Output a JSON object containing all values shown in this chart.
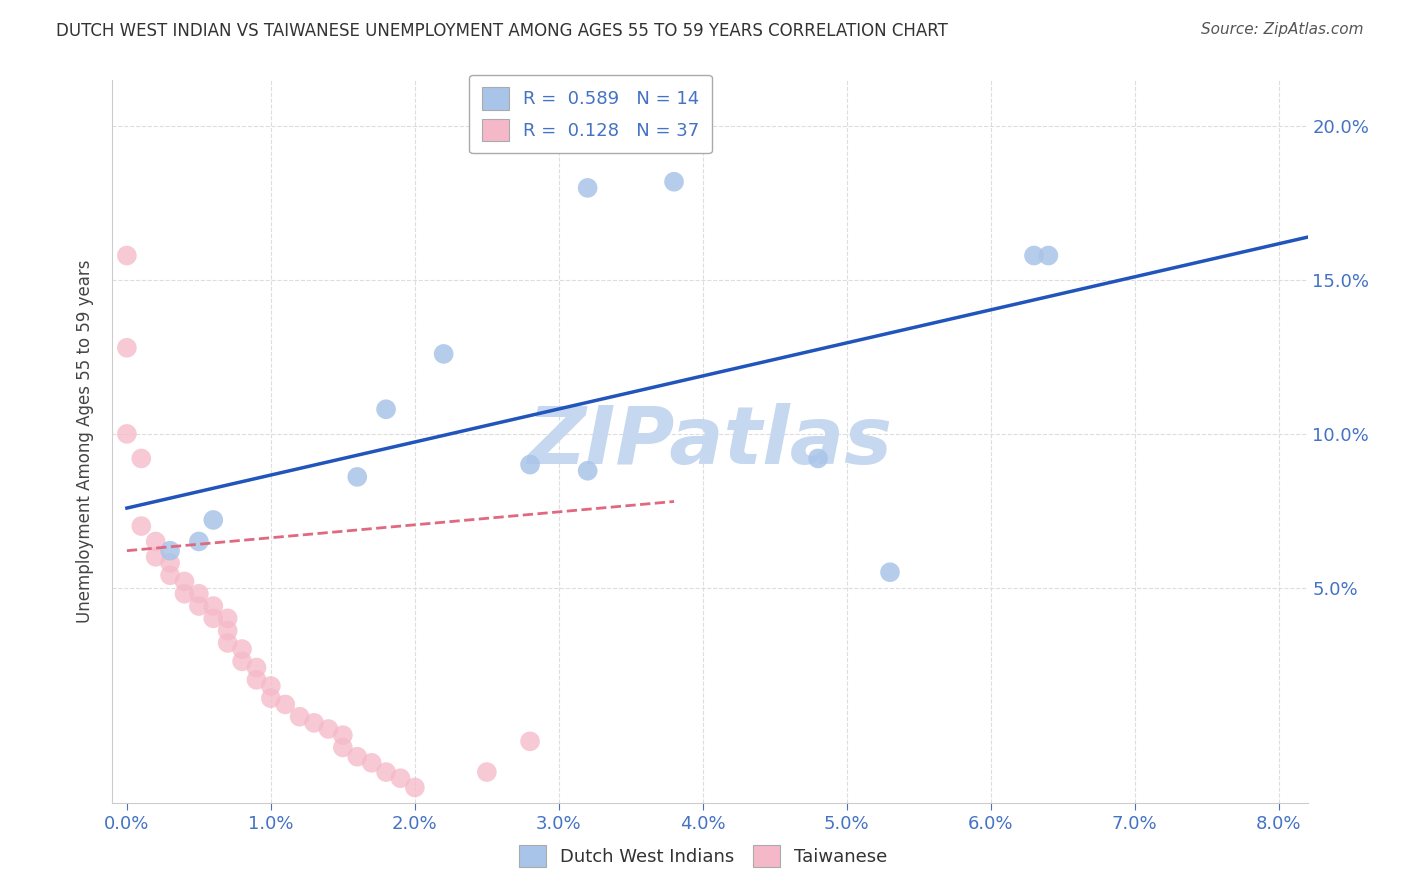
{
  "title": "DUTCH WEST INDIAN VS TAIWANESE UNEMPLOYMENT AMONG AGES 55 TO 59 YEARS CORRELATION CHART",
  "source": "Source: ZipAtlas.com",
  "ylabel_label": "Unemployment Among Ages 55 to 59 years",
  "xlim": [
    -0.001,
    0.082
  ],
  "ylim": [
    -0.02,
    0.215
  ],
  "r_blue": 0.589,
  "n_blue": 14,
  "r_pink": 0.128,
  "n_pink": 37,
  "blue_color": "#a8c4e8",
  "pink_color": "#f5b8c8",
  "blue_line_color": "#2255bb",
  "pink_line_color": "#e06880",
  "watermark": "ZIPatlas",
  "watermark_color": "#c5d8f0",
  "legend_label_blue": "Dutch West Indians",
  "legend_label_pink": "Taiwanese",
  "background_color": "#ffffff",
  "grid_color": "#dddddd",
  "blue_x": [
    0.003,
    0.005,
    0.006,
    0.016,
    0.018,
    0.022,
    0.028,
    0.032,
    0.038,
    0.048,
    0.053,
    0.063,
    0.064,
    0.032
  ],
  "blue_y": [
    0.062,
    0.065,
    0.072,
    0.086,
    0.108,
    0.126,
    0.09,
    0.088,
    0.182,
    0.092,
    0.055,
    0.158,
    0.158,
    0.18
  ],
  "pink_x": [
    0.0,
    0.0,
    0.0,
    0.001,
    0.001,
    0.002,
    0.002,
    0.003,
    0.003,
    0.004,
    0.004,
    0.005,
    0.005,
    0.006,
    0.006,
    0.007,
    0.007,
    0.007,
    0.008,
    0.008,
    0.009,
    0.009,
    0.01,
    0.01,
    0.011,
    0.012,
    0.013,
    0.014,
    0.015,
    0.015,
    0.016,
    0.017,
    0.018,
    0.019,
    0.02,
    0.025,
    0.028
  ],
  "pink_y": [
    0.158,
    0.128,
    0.1,
    0.092,
    0.07,
    0.065,
    0.06,
    0.058,
    0.054,
    0.052,
    0.048,
    0.048,
    0.044,
    0.044,
    0.04,
    0.04,
    0.036,
    0.032,
    0.03,
    0.026,
    0.024,
    0.02,
    0.018,
    0.014,
    0.012,
    0.008,
    0.006,
    0.004,
    0.002,
    -0.002,
    -0.005,
    -0.007,
    -0.01,
    -0.012,
    -0.015,
    -0.01,
    0.0
  ],
  "blue_line_x0": 0.0,
  "blue_line_y0": 0.068,
  "blue_line_x1": 0.08,
  "blue_line_y1": 0.178,
  "pink_line_x0": 0.0,
  "pink_line_y0": 0.062,
  "pink_line_x1": 0.038,
  "pink_line_y1": 0.078
}
